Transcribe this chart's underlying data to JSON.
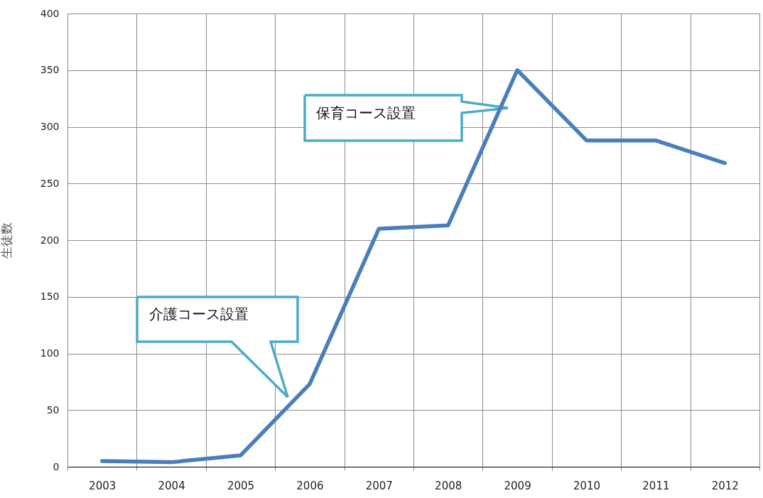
{
  "chart_data": {
    "type": "line",
    "categories": [
      "2003",
      "2004",
      "2005",
      "2006",
      "2007",
      "2008",
      "2009",
      "2010",
      "2011",
      "2012"
    ],
    "series": [
      {
        "color": "#4a7ebb",
        "values": [
          5,
          4,
          10,
          73,
          210,
          213,
          350,
          288,
          288,
          268
        ]
      }
    ],
    "ylabel": "生徒数",
    "ylim": [
      0,
      400
    ],
    "yticks": [
      0,
      50,
      100,
      150,
      200,
      250,
      300,
      350,
      400
    ],
    "grid": true,
    "annotations": [
      "介護コース設置",
      "保育コース設置"
    ]
  }
}
